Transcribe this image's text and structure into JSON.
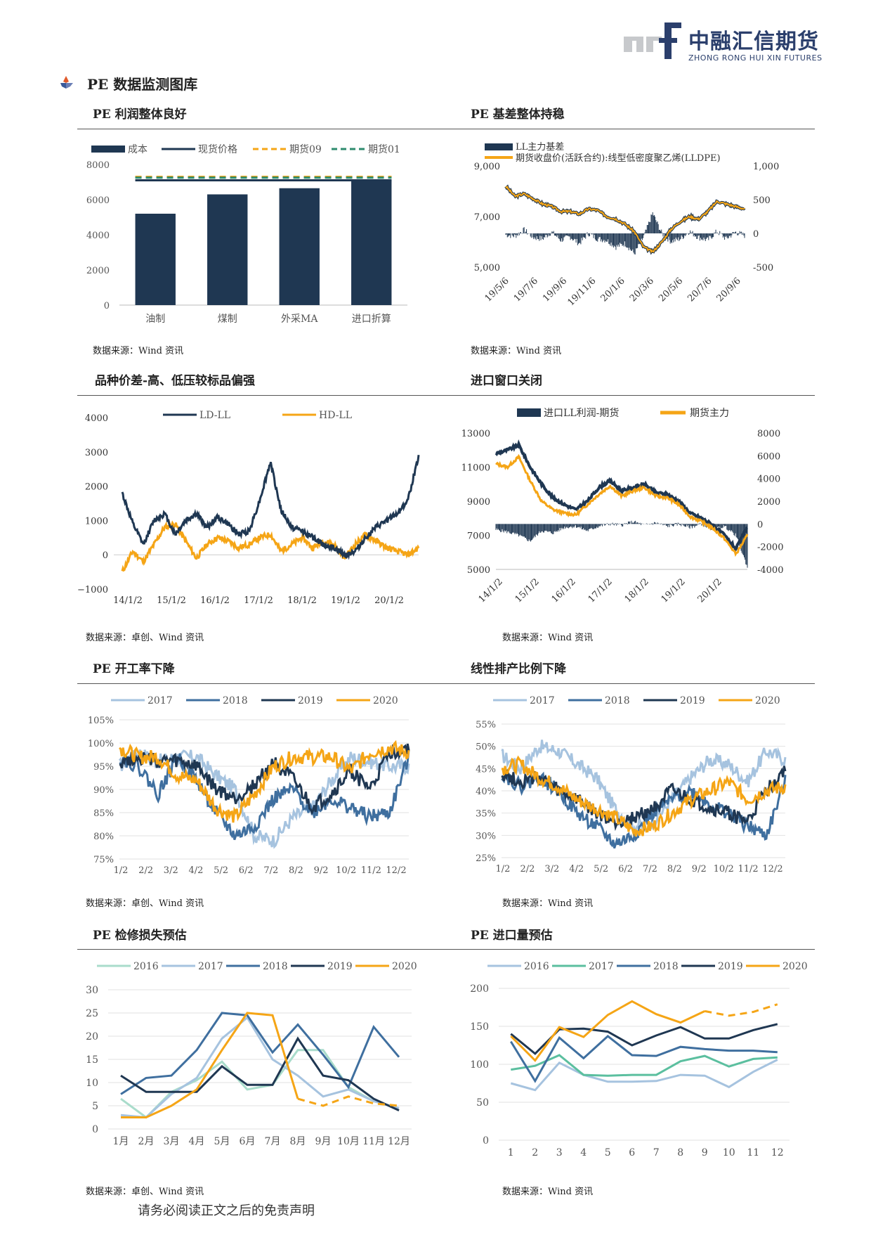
{
  "header": {
    "logo_mark": "zrf",
    "logo_cn": "中融汇信期货",
    "logo_en": "ZHONG RONG HUI XIN FUTURES"
  },
  "section_title": "PE 数据监测图库",
  "footer": "请务必阅读正文之后的免责声明",
  "panels": {
    "p1": {
      "title": "PE 利润整体良好",
      "source": "数据来源：Wind 资讯"
    },
    "p2": {
      "title": "PE 基差整体持稳",
      "source": "数据来源：Wind 资讯"
    },
    "p3": {
      "title": "品种价差-高、低压较标品偏强",
      "source": "数据来源：卓创、Wind 资讯"
    },
    "p4": {
      "title": "进口窗口关闭",
      "source": "数据来源：Wind 资讯"
    },
    "p5": {
      "title": "PE 开工率下降",
      "source": "数据来源：卓创、Wind 资讯"
    },
    "p6": {
      "title": "线性排产比例下降",
      "source": "数据来源：Wind 资讯"
    },
    "p7": {
      "title": "PE 检修损失预估",
      "source": "数据来源：卓创、Wind 资讯"
    },
    "p8": {
      "title": "PE 进口量预估",
      "source": "数据来源：Wind 资讯"
    }
  },
  "chart_data": [
    {
      "id": "c1",
      "type": "bar",
      "categories": [
        "油制",
        "煤制",
        "外采MA",
        "进口折算"
      ],
      "series": [
        {
          "name": "成本",
          "type": "bar",
          "values": [
            5200,
            6300,
            6650,
            7100
          ],
          "color": "#1f3752"
        },
        {
          "name": "现货价格",
          "type": "line",
          "values": [
            7100,
            7100,
            7100,
            7100
          ],
          "color": "#1f3752"
        },
        {
          "name": "期货09",
          "type": "dashed",
          "values": [
            7300,
            7300,
            7300,
            7300
          ],
          "color": "#f5a516"
        },
        {
          "name": "期货01",
          "type": "dashed",
          "values": [
            7250,
            7250,
            7250,
            7250
          ],
          "color": "#2e8b6e"
        }
      ],
      "ylim": [
        0,
        8000
      ],
      "yticks": [
        "0",
        "2000",
        "4000",
        "6000",
        "8000"
      ]
    },
    {
      "id": "c2",
      "type": "line",
      "series": [
        {
          "name": "LL主力基差",
          "axis": "right",
          "color": "#1f3752"
        },
        {
          "name": "期货收盘价(活跃合约):线型低密度聚乙烯(LLDPE)",
          "axis": "left",
          "color": "#f5a516"
        }
      ],
      "xticks": [
        "19/5/6",
        "19/7/6",
        "19/9/6",
        "19/11/6",
        "20/1/6",
        "20/3/6",
        "20/5/6",
        "20/7/6",
        "20/9/6"
      ],
      "ylim_left": [
        5000,
        9000
      ],
      "yticks_left": [
        "5,000",
        "7,000",
        "9,000"
      ],
      "ylim_right": [
        -500,
        1000
      ],
      "yticks_right": [
        "-500",
        "0",
        "500",
        "1,000"
      ],
      "left_values": [
        8200,
        7800,
        7900,
        7700,
        7500,
        7400,
        7200,
        7200,
        7100,
        7300,
        7250,
        7000,
        6900,
        6700,
        6400,
        5800,
        5600,
        6000,
        6500,
        6800,
        7000,
        6900,
        7200,
        7600,
        7500,
        7400,
        7300
      ],
      "right_values": [
        -20,
        -40,
        50,
        -60,
        -80,
        20,
        -100,
        -50,
        -150,
        0,
        -80,
        -100,
        -200,
        -150,
        -300,
        -60,
        300,
        0,
        -120,
        -80,
        30,
        -60,
        -100,
        30,
        -80,
        20,
        -30
      ]
    },
    {
      "id": "c3",
      "type": "line",
      "series": [
        {
          "name": "LD-LL",
          "color": "#1f3752",
          "values": [
            1800,
            900,
            300,
            1000,
            1200,
            600,
            1000,
            1200,
            800,
            1100,
            900,
            600,
            700,
            1600,
            2700,
            1300,
            800,
            700,
            500,
            300,
            200,
            0,
            100,
            500,
            800,
            1000,
            1200,
            1600,
            2900
          ]
        },
        {
          "name": "HD-LL",
          "color": "#f5a516",
          "values": [
            -500,
            100,
            -200,
            300,
            800,
            900,
            400,
            -100,
            300,
            500,
            400,
            200,
            300,
            500,
            600,
            100,
            300,
            500,
            200,
            400,
            300,
            -100,
            300,
            600,
            400,
            200,
            100,
            0,
            200
          ]
        }
      ],
      "xticks": [
        "14/1/2",
        "15/1/2",
        "16/1/2",
        "17/1/2",
        "18/1/2",
        "19/1/2",
        "20/1/2"
      ],
      "ylim": [
        -1000,
        4000
      ],
      "yticks": [
        "−1000",
        "0",
        "1000",
        "2000",
        "3000",
        "4000"
      ]
    },
    {
      "id": "c4",
      "type": "line",
      "series": [
        {
          "name": "进口LL利润-期货",
          "axis": "right",
          "color": "#1f3752"
        },
        {
          "name": "期货主力",
          "axis": "left",
          "color": "#f5a516"
        }
      ],
      "xticks": [
        "14/1/2",
        "15/1/2",
        "16/1/2",
        "17/1/2",
        "18/1/2",
        "19/1/2",
        "20/1/2"
      ],
      "ylim_left": [
        5000,
        13000
      ],
      "yticks_left": [
        "5000",
        "7000",
        "9000",
        "11000",
        "13000"
      ],
      "ylim_right": [
        -4000,
        8000
      ],
      "yticks_right": [
        "-4000",
        "-2000",
        "0",
        "2000",
        "4000",
        "6000",
        "8000"
      ],
      "left_dark": [
        11800,
        12000,
        12300,
        11000,
        10000,
        9200,
        8800,
        8500,
        9000,
        9800,
        10200,
        9600,
        9800,
        10000,
        9500,
        9400,
        9000,
        8300,
        8000,
        7600,
        7000,
        6200,
        7500
      ],
      "left_orange": [
        11200,
        11000,
        11600,
        10200,
        9000,
        8500,
        8300,
        8200,
        8800,
        9400,
        9900,
        9300,
        9600,
        9800,
        9300,
        9200,
        8800,
        8100,
        7800,
        7400,
        6800,
        5900,
        7000
      ],
      "right_values": [
        -500,
        -700,
        -1000,
        -1500,
        -600,
        -800,
        -300,
        -200,
        -600,
        -200,
        0,
        -100,
        200,
        -100,
        100,
        -200,
        0,
        -300,
        0,
        -500,
        -200,
        -1000,
        -3800
      ]
    },
    {
      "id": "c5",
      "type": "line",
      "series": [
        {
          "name": "2017",
          "color": "#a6c3df",
          "values": [
            95,
            98,
            96,
            97,
            97,
            93,
            90,
            80,
            79,
            84,
            86,
            92,
            97,
            96,
            95,
            95
          ]
        },
        {
          "name": "2018",
          "color": "#3f6f9f",
          "values": [
            97,
            95,
            89,
            97,
            92,
            85,
            80,
            82,
            88,
            90,
            85,
            88,
            86,
            84,
            85,
            97
          ]
        },
        {
          "name": "2019",
          "color": "#1f3752",
          "values": [
            96,
            97,
            96,
            96,
            95,
            90,
            88,
            91,
            96,
            92,
            86,
            89,
            94,
            90,
            98,
            99
          ]
        },
        {
          "name": "2020",
          "color": "#f5a516",
          "values": [
            99,
            97,
            97,
            93,
            92,
            86,
            84,
            89,
            95,
            97,
            97,
            97,
            94,
            98,
            99,
            98
          ]
        }
      ],
      "xticks": [
        "1/2",
        "2/2",
        "3/2",
        "4/2",
        "5/2",
        "6/2",
        "7/2",
        "8/2",
        "9/2",
        "10/2",
        "11/2",
        "12/2"
      ],
      "ylim": [
        75,
        105
      ],
      "yticks": [
        "75%",
        "80%",
        "85%",
        "90%",
        "95%",
        "100%",
        "105%"
      ]
    },
    {
      "id": "c6",
      "type": "line",
      "series": [
        {
          "name": "2017",
          "color": "#a6c3df",
          "values": [
            48,
            45,
            50,
            49,
            46,
            43,
            36,
            32,
            33,
            38,
            43,
            47,
            46,
            42,
            49,
            47
          ]
        },
        {
          "name": "2018",
          "color": "#3f6f9f",
          "values": [
            44,
            41,
            43,
            40,
            35,
            32,
            28,
            30,
            35,
            38,
            40,
            37,
            35,
            32,
            30,
            42
          ]
        },
        {
          "name": "2019",
          "color": "#1f3752",
          "values": [
            44,
            42,
            43,
            40,
            38,
            35,
            33,
            34,
            36,
            40,
            38,
            36,
            35,
            33,
            40,
            45
          ]
        },
        {
          "name": "2020",
          "color": "#f5a516",
          "values": [
            45,
            46,
            43,
            41,
            38,
            36,
            34,
            31,
            32,
            35,
            38,
            40,
            42,
            38,
            40,
            41
          ]
        }
      ],
      "xticks": [
        "1/2",
        "2/2",
        "3/2",
        "4/2",
        "5/2",
        "6/2",
        "7/2",
        "8/2",
        "9/2",
        "10/2",
        "11/2",
        "12/2"
      ],
      "ylim": [
        25,
        55
      ],
      "yticks": [
        "25%",
        "30%",
        "35%",
        "40%",
        "45%",
        "50%",
        "55%"
      ]
    },
    {
      "id": "c7",
      "type": "line",
      "categories": [
        "1月",
        "2月",
        "3月",
        "4月",
        "5月",
        "6月",
        "7月",
        "8月",
        "9月",
        "10月",
        "11月",
        "12月"
      ],
      "series": [
        {
          "name": "2016",
          "color": "#a9dccb",
          "values": [
            6.5,
            2.5,
            8,
            10.5,
            14.5,
            8.5,
            9.5,
            17,
            17,
            9,
            6,
            4.5
          ]
        },
        {
          "name": "2017",
          "color": "#a6c3df",
          "values": [
            3,
            2.5,
            7.5,
            11,
            19.5,
            24,
            15,
            11.5,
            7,
            8.5,
            6,
            4.5
          ]
        },
        {
          "name": "2018",
          "color": "#3f6f9f",
          "values": [
            7.5,
            11,
            11.5,
            17,
            25,
            24.5,
            16.5,
            22.5,
            16,
            9,
            22,
            15.5
          ]
        },
        {
          "name": "2019",
          "color": "#1f3752",
          "values": [
            11.5,
            8,
            8,
            8,
            13.5,
            9.5,
            9.5,
            19.5,
            11.5,
            10.5,
            6.5,
            4
          ]
        },
        {
          "name": "2020",
          "color": "#f5a516",
          "values": [
            2.5,
            2.5,
            5,
            8.5,
            17,
            25,
            24.5,
            6.5,
            5,
            7,
            5.5,
            5
          ],
          "dashed_from": 7
        }
      ],
      "ylim": [
        0,
        30
      ],
      "yticks": [
        "0",
        "5",
        "10",
        "15",
        "20",
        "25",
        "30"
      ]
    },
    {
      "id": "c8",
      "type": "line",
      "categories": [
        "1",
        "2",
        "3",
        "4",
        "5",
        "6",
        "7",
        "8",
        "9",
        "10",
        "11",
        "12"
      ],
      "series": [
        {
          "name": "2016",
          "color": "#a6c3df",
          "values": [
            75,
            66,
            102,
            86,
            77,
            77,
            78,
            86,
            85,
            70,
            90,
            106
          ]
        },
        {
          "name": "2017",
          "color": "#5bbf9f",
          "values": [
            93,
            98,
            112,
            86,
            85,
            86,
            86,
            104,
            111,
            97,
            107,
            109
          ]
        },
        {
          "name": "2018",
          "color": "#3f6f9f",
          "values": [
            130,
            78,
            135,
            108,
            137,
            112,
            111,
            123,
            120,
            118,
            118,
            116
          ]
        },
        {
          "name": "2019",
          "color": "#1f3752",
          "values": [
            140,
            114,
            146,
            147,
            143,
            125,
            138,
            149,
            134,
            134,
            145,
            153
          ]
        },
        {
          "name": "2020",
          "color": "#f5a516",
          "values": [
            137,
            105,
            149,
            136,
            165,
            183,
            166,
            155,
            170,
            164,
            169,
            179
          ],
          "dashed_from": 8
        }
      ],
      "ylim": [
        0,
        200
      ],
      "yticks": [
        "0",
        "50",
        "100",
        "150",
        "200"
      ]
    }
  ]
}
